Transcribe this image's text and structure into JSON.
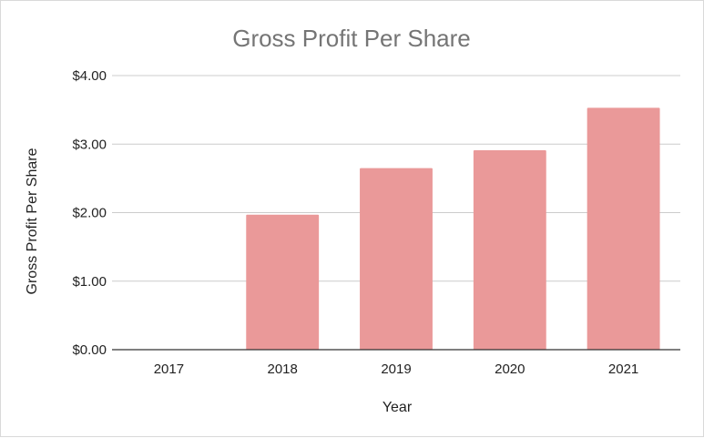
{
  "chart_data": {
    "type": "bar",
    "title": "Gross Profit Per Share",
    "xlabel": "Year",
    "ylabel": "Gross Profit Per Share",
    "categories": [
      "2017",
      "2018",
      "2019",
      "2020",
      "2021"
    ],
    "values": [
      0,
      1.97,
      2.65,
      2.91,
      3.53
    ],
    "ylim": [
      0,
      4
    ],
    "yticks": [
      0,
      1,
      2,
      3,
      4
    ],
    "ytick_labels": [
      "$0.00",
      "$1.00",
      "$2.00",
      "$3.00",
      "$4.00"
    ],
    "grid": true,
    "legend": "none",
    "bar_color": "#ea9999",
    "grid_color": "#cccccc",
    "axis_color": "#333333"
  }
}
